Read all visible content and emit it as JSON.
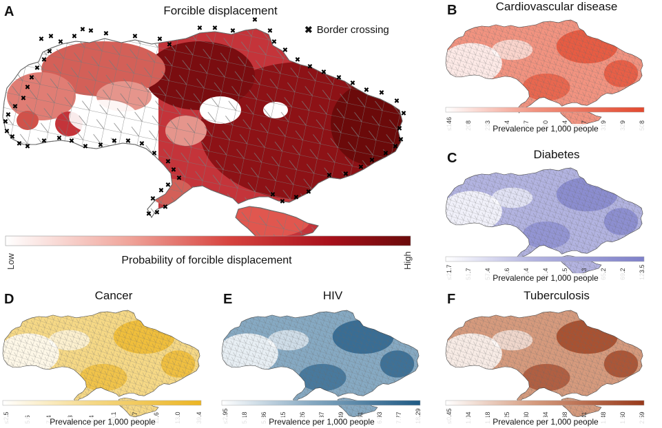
{
  "panel_a": {
    "label": "A",
    "title": "Forcible displacement",
    "legend_label": "Border crossing",
    "legend_icon": "cross-icon",
    "colorbar_caption": "Probability of forcible displacement",
    "colorbar_low": "Low",
    "colorbar_high": "High",
    "colors": [
      "#ffffff",
      "#f3b6ae",
      "#e0574f",
      "#b8151e",
      "#6e0a0a"
    ]
  },
  "panels": [
    {
      "label": "B",
      "title": "Cardiovascular disease",
      "caption": "Prevalence per 1,000 people",
      "ticks": [
        "≤146",
        "208",
        "233",
        "254",
        "267",
        "280",
        "294",
        "307",
        "319",
        "329",
        "508"
      ],
      "colors": [
        "#ffffff",
        "#f19380",
        "#e2492f"
      ]
    },
    {
      "label": "C",
      "title": "Diabetes",
      "caption": "Prevalence per 1,000 people",
      "ticks": [
        "≤21.7",
        "51.7",
        "57.4",
        "59.6",
        "60.4",
        "61.4",
        "62.5",
        "64.3",
        "65.2",
        "69.2",
        "123.5"
      ],
      "colors": [
        "#ffffff",
        "#b2b3e0",
        "#7e80c9"
      ]
    },
    {
      "label": "D",
      "title": "Cancer",
      "caption": "Prevalence per 1,000 people",
      "ticks": [
        "≤2.5",
        "5.6",
        "7.4",
        "8.3",
        "9.4",
        "10.1",
        "10.7",
        "11.6",
        "13.0",
        "39.4"
      ],
      "colors": [
        "#ffffff",
        "#f5d886",
        "#ecb523"
      ]
    },
    {
      "label": "E",
      "title": "HIV",
      "caption": "Prevalence per 1,000 people",
      "ticks": [
        "≤2.95",
        "5.18",
        "5.86",
        "6.15",
        "6.26",
        "6.37",
        "6.49",
        "6.61",
        "6.93",
        "7.77",
        "18.29"
      ],
      "colors": [
        "#ffffff",
        "#86a9c2",
        "#1f5a84"
      ]
    },
    {
      "label": "F",
      "title": "Tuberculosis",
      "caption": "Prevalence per 1,000 people",
      "ticks": [
        "≤0.45",
        "1.04",
        "1.18",
        "1.25",
        "1.30",
        "1.34",
        "1.38",
        "1.41",
        "1.48",
        "1.60",
        "2.59"
      ],
      "colors": [
        "#ffffff",
        "#d59a7d",
        "#98391a"
      ]
    }
  ]
}
